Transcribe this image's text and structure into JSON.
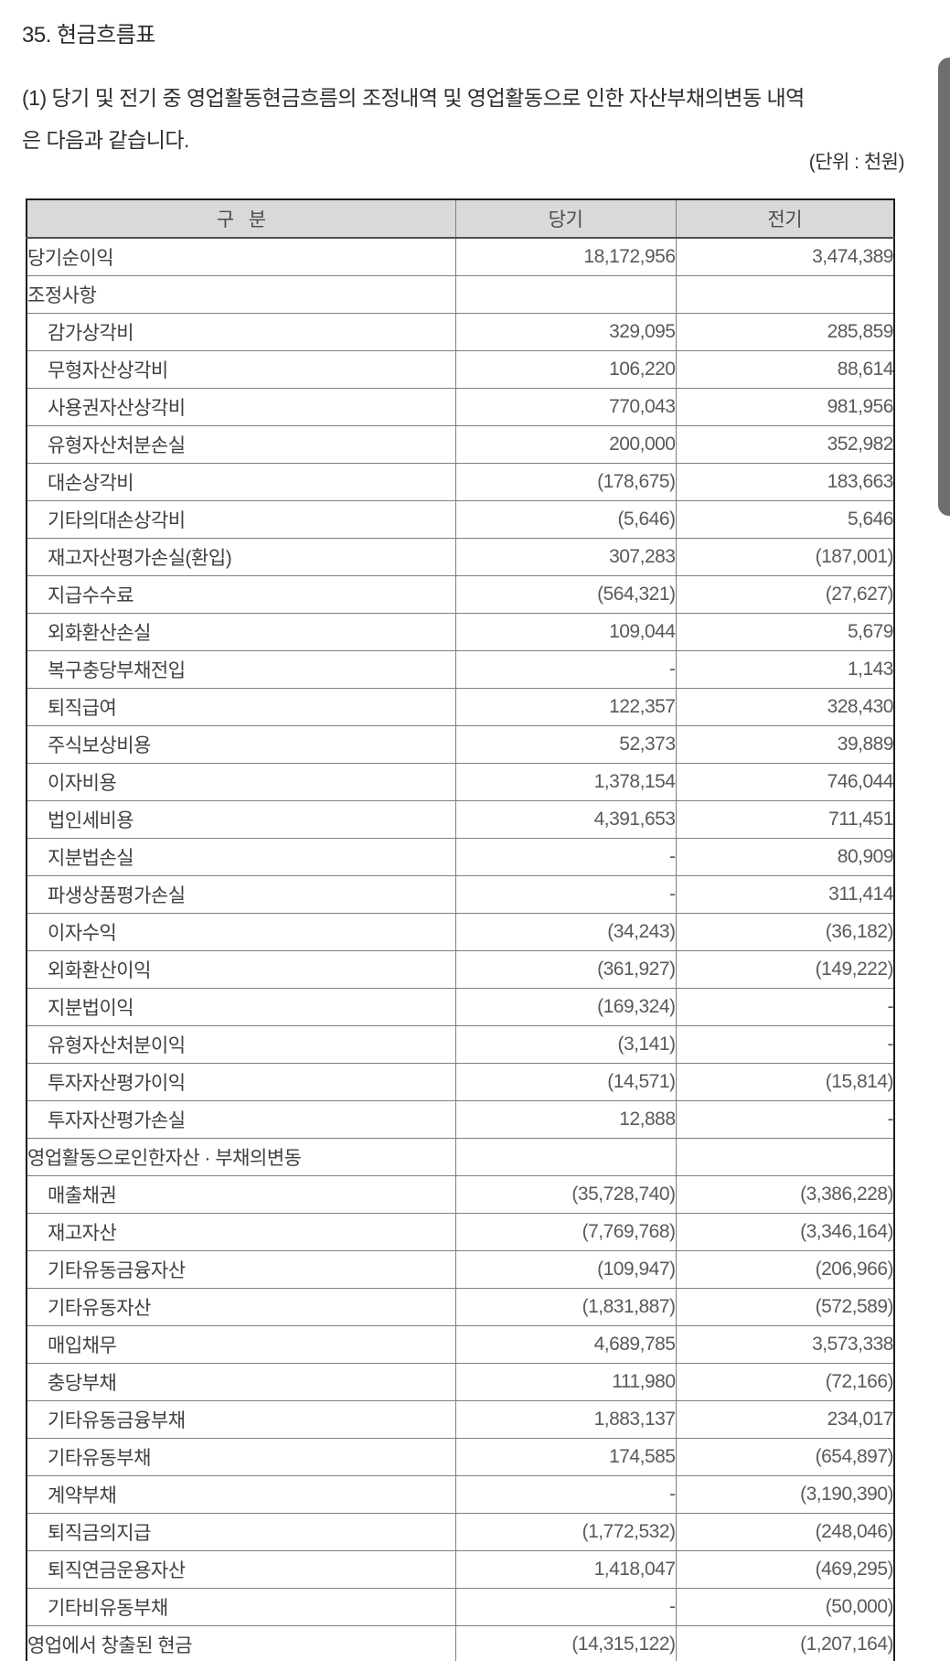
{
  "page": {
    "title": "35. 현금흐름표",
    "intro_line1": "(1) 당기 및 전기 중 영업활동현금흐름의 조정내역 및 영업활동으로 인한 자산부채의변동 내역",
    "intro_line2": "은 다음과 같습니다.",
    "unit_label": "(단위 : 천원)"
  },
  "colors": {
    "header_bg": "#d9d9d9",
    "outer_border": "#1d1d1d",
    "inner_border": "#7f7f7f",
    "label_text": "#3f3f3f",
    "number_text": "#5a5a5a",
    "scrollbar": "#6e6e6e"
  },
  "table": {
    "headers": {
      "category": "구   분",
      "current": "당기",
      "prior": "전기"
    },
    "rows": [
      {
        "label": "당기순이익",
        "indent": false,
        "current": "18,172,956",
        "prior": "3,474,389"
      },
      {
        "label": "조정사항",
        "indent": false,
        "current": "",
        "prior": ""
      },
      {
        "label": "감가상각비",
        "indent": true,
        "current": "329,095",
        "prior": "285,859"
      },
      {
        "label": "무형자산상각비",
        "indent": true,
        "current": "106,220",
        "prior": "88,614"
      },
      {
        "label": "사용권자산상각비",
        "indent": true,
        "current": "770,043",
        "prior": "981,956"
      },
      {
        "label": "유형자산처분손실",
        "indent": true,
        "current": "200,000",
        "prior": "352,982"
      },
      {
        "label": "대손상각비",
        "indent": true,
        "current": "(178,675)",
        "prior": "183,663"
      },
      {
        "label": "기타의대손상각비",
        "indent": true,
        "current": "(5,646)",
        "prior": "5,646"
      },
      {
        "label": "재고자산평가손실(환입)",
        "indent": true,
        "current": "307,283",
        "prior": "(187,001)"
      },
      {
        "label": "지급수수료",
        "indent": true,
        "current": "(564,321)",
        "prior": "(27,627)"
      },
      {
        "label": "외화환산손실",
        "indent": true,
        "current": "109,044",
        "prior": "5,679"
      },
      {
        "label": "복구충당부채전입",
        "indent": true,
        "current": "-",
        "prior": "1,143"
      },
      {
        "label": "퇴직급여",
        "indent": true,
        "current": "122,357",
        "prior": "328,430"
      },
      {
        "label": "주식보상비용",
        "indent": true,
        "current": "52,373",
        "prior": "39,889"
      },
      {
        "label": "이자비용",
        "indent": true,
        "current": "1,378,154",
        "prior": "746,044"
      },
      {
        "label": "법인세비용",
        "indent": true,
        "current": "4,391,653",
        "prior": "711,451"
      },
      {
        "label": "지분법손실",
        "indent": true,
        "current": "-",
        "prior": "80,909"
      },
      {
        "label": "파생상품평가손실",
        "indent": true,
        "current": "-",
        "prior": "311,414"
      },
      {
        "label": "이자수익",
        "indent": true,
        "current": "(34,243)",
        "prior": "(36,182)"
      },
      {
        "label": "외화환산이익",
        "indent": true,
        "current": "(361,927)",
        "prior": "(149,222)"
      },
      {
        "label": "지분법이익",
        "indent": true,
        "current": "(169,324)",
        "prior": "-"
      },
      {
        "label": "유형자산처분이익",
        "indent": true,
        "current": "(3,141)",
        "prior": "-"
      },
      {
        "label": "투자자산평가이익",
        "indent": true,
        "current": "(14,571)",
        "prior": "(15,814)"
      },
      {
        "label": "투자자산평가손실",
        "indent": true,
        "current": "12,888",
        "prior": "-"
      },
      {
        "label": "영업활동으로인한자산 · 부채의변동",
        "indent": false,
        "current": "",
        "prior": ""
      },
      {
        "label": "매출채권",
        "indent": true,
        "current": "(35,728,740)",
        "prior": "(3,386,228)"
      },
      {
        "label": "재고자산",
        "indent": true,
        "current": "(7,769,768)",
        "prior": "(3,346,164)"
      },
      {
        "label": "기타유동금융자산",
        "indent": true,
        "current": "(109,947)",
        "prior": "(206,966)"
      },
      {
        "label": "기타유동자산",
        "indent": true,
        "current": "(1,831,887)",
        "prior": "(572,589)"
      },
      {
        "label": "매입채무",
        "indent": true,
        "current": "4,689,785",
        "prior": "3,573,338"
      },
      {
        "label": "충당부채",
        "indent": true,
        "current": "111,980",
        "prior": "(72,166)"
      },
      {
        "label": "기타유동금융부채",
        "indent": true,
        "current": "1,883,137",
        "prior": "234,017"
      },
      {
        "label": "기타유동부채",
        "indent": true,
        "current": "174,585",
        "prior": "(654,897)"
      },
      {
        "label": "계약부채",
        "indent": true,
        "current": "-",
        "prior": "(3,190,390)"
      },
      {
        "label": "퇴직금의지급",
        "indent": true,
        "current": "(1,772,532)",
        "prior": "(248,046)"
      },
      {
        "label": "퇴직연금운용자산",
        "indent": true,
        "current": "1,418,047",
        "prior": "(469,295)"
      },
      {
        "label": "기타비유동부채",
        "indent": true,
        "current": "-",
        "prior": "(50,000)"
      },
      {
        "label": "영업에서 창출된 현금",
        "indent": false,
        "current": "(14,315,122)",
        "prior": "(1,207,164)"
      }
    ]
  }
}
